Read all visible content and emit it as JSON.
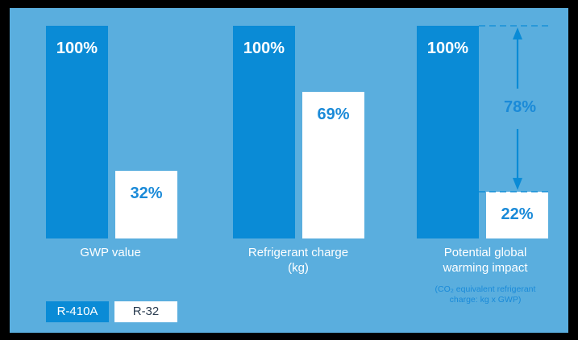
{
  "chart_data": {
    "type": "bar",
    "categories": [
      "GWP value",
      "Refrigerant charge\n(kg)",
      "Potential global\nwarming impact"
    ],
    "series": [
      {
        "name": "R-410A",
        "values": [
          100,
          100,
          100
        ],
        "labels": [
          "100%",
          "100%",
          "100%"
        ]
      },
      {
        "name": "R-32",
        "values": [
          32,
          69,
          22
        ],
        "labels": [
          "32%",
          "69%",
          "22%"
        ]
      }
    ],
    "ylim": [
      0,
      100
    ],
    "legend": "bottom-left",
    "annotations": {
      "difference_label": "78%",
      "note": "(CO₂ equivalent refrigerant\ncharge: kg x GWP)"
    },
    "colors": {
      "background": "#5aaede",
      "r410a": "#0a8bd6",
      "r32": "#ffffff",
      "label_on_dark": "#ffffff",
      "label_on_light": "#1a8ad8",
      "arrow": "#0a8bd6",
      "frame": "#000000"
    }
  }
}
